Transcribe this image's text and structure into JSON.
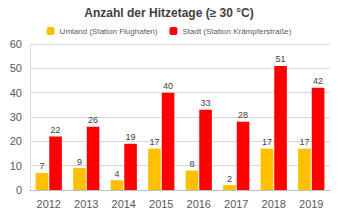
{
  "chart_data": {
    "type": "bar",
    "title": "Anzahl der Hitzetage (≥ 30 °C)",
    "categories": [
      "2012",
      "2013",
      "2014",
      "2015",
      "2016",
      "2017",
      "2018",
      "2019"
    ],
    "series": [
      {
        "name": "Umland (Station Flughafen)",
        "color": "#FFC000",
        "values": [
          7,
          9,
          4,
          17,
          8,
          2,
          17,
          17
        ]
      },
      {
        "name": "Stadt (Station Krämpferstraße)",
        "color": "#FF0000",
        "values": [
          22,
          26,
          19,
          40,
          33,
          28,
          51,
          42
        ]
      }
    ],
    "ylim": [
      0,
      60
    ],
    "yticks": [
      0,
      10,
      20,
      30,
      40,
      50,
      60
    ],
    "grid": true,
    "legend": "top",
    "data_labels": true
  }
}
